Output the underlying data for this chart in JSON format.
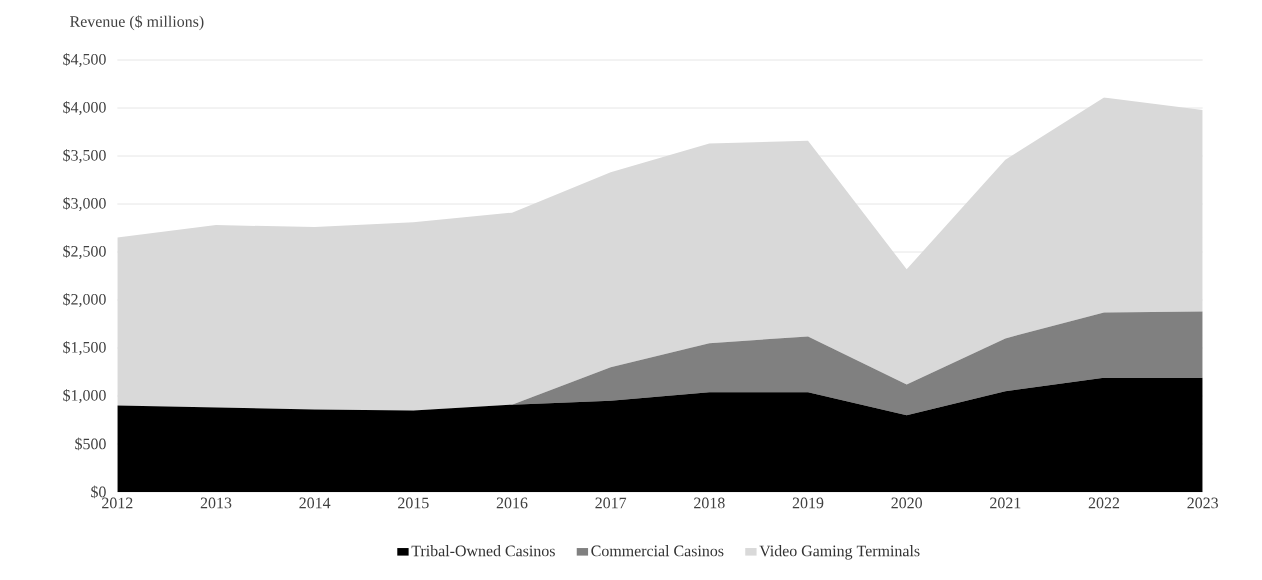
{
  "chart_data": {
    "type": "area",
    "stacked": true,
    "ylabel": "Revenue ($ millions)",
    "categories": [
      "2012",
      "2013",
      "2014",
      "2015",
      "2016",
      "2017",
      "2018",
      "2019",
      "2020",
      "2021",
      "2022",
      "2023"
    ],
    "series": [
      {
        "name": "Tribal-Owned Casinos",
        "color": "#000000",
        "values": [
          900,
          880,
          860,
          850,
          910,
          950,
          1040,
          1040,
          800,
          1050,
          1190,
          1190
        ]
      },
      {
        "name": "Commercial Casinos",
        "color": "#808080",
        "values": [
          0,
          0,
          0,
          0,
          0,
          350,
          510,
          580,
          320,
          550,
          680,
          690
        ]
      },
      {
        "name": "Video Gaming Terminals",
        "color": "#d9d9d9",
        "values": [
          1750,
          1900,
          1900,
          1960,
          2000,
          2030,
          2080,
          2040,
          1200,
          1860,
          2240,
          2100
        ]
      }
    ],
    "ylim": [
      0,
      4500
    ],
    "yticks": [
      {
        "value": 0,
        "label": "$0"
      },
      {
        "value": 500,
        "label": "$500"
      },
      {
        "value": 1000,
        "label": "$1,000"
      },
      {
        "value": 1500,
        "label": "$1,500"
      },
      {
        "value": 2000,
        "label": "$2,000"
      },
      {
        "value": 2500,
        "label": "$2,500"
      },
      {
        "value": 3000,
        "label": "$3,000"
      },
      {
        "value": 3500,
        "label": "$3,500"
      },
      {
        "value": 4000,
        "label": "$4,000"
      },
      {
        "value": 4500,
        "label": "$4,500"
      }
    ],
    "grid": "y",
    "legend": "bottom"
  }
}
